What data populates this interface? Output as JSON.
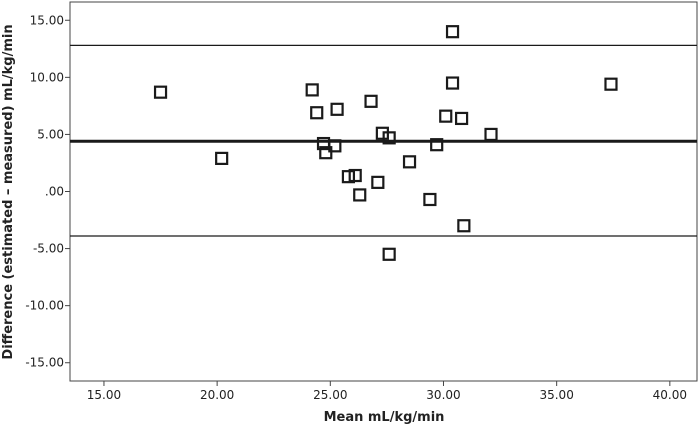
{
  "chart_data": {
    "type": "scatter",
    "xlabel": "Mean mL/kg/min",
    "ylabel": "Difference (estimated – measured) mL/kg/min",
    "xlim": [
      13.5,
      41.2
    ],
    "ylim": [
      -16.6,
      16.6
    ],
    "x_ticks": [
      15,
      20,
      25,
      30,
      35,
      40
    ],
    "x_tick_labels": [
      "15.00",
      "20.00",
      "25.00",
      "30.00",
      "35.00",
      "40.00"
    ],
    "y_ticks": [
      15,
      10,
      5,
      0,
      -5,
      -10,
      -15
    ],
    "y_tick_labels": [
      "15.00",
      "10.00",
      "5.00",
      ".00",
      "-5.00",
      "-10.00",
      "-15.00"
    ],
    "reference_lines": [
      {
        "y": 12.8,
        "style": "thin"
      },
      {
        "y": 4.4,
        "style": "thick"
      },
      {
        "y": -3.9,
        "style": "thin"
      }
    ],
    "marker": "open-square",
    "grid": false,
    "points": [
      {
        "x": 17.5,
        "y": 8.7
      },
      {
        "x": 20.2,
        "y": 2.9
      },
      {
        "x": 24.2,
        "y": 8.9
      },
      {
        "x": 24.4,
        "y": 6.9
      },
      {
        "x": 24.7,
        "y": 4.2
      },
      {
        "x": 24.8,
        "y": 3.4
      },
      {
        "x": 25.2,
        "y": 4.0
      },
      {
        "x": 25.3,
        "y": 7.2
      },
      {
        "x": 25.8,
        "y": 1.3
      },
      {
        "x": 26.1,
        "y": 1.4
      },
      {
        "x": 26.3,
        "y": -0.3
      },
      {
        "x": 26.8,
        "y": 7.9
      },
      {
        "x": 27.1,
        "y": 0.8
      },
      {
        "x": 27.3,
        "y": 5.1
      },
      {
        "x": 27.6,
        "y": 4.7
      },
      {
        "x": 27.6,
        "y": -5.5
      },
      {
        "x": 28.5,
        "y": 2.6
      },
      {
        "x": 29.4,
        "y": -0.7
      },
      {
        "x": 29.7,
        "y": 4.1
      },
      {
        "x": 30.1,
        "y": 6.6
      },
      {
        "x": 30.4,
        "y": 14.0
      },
      {
        "x": 30.4,
        "y": 9.5
      },
      {
        "x": 30.8,
        "y": 6.4
      },
      {
        "x": 30.9,
        "y": -3.0
      },
      {
        "x": 32.1,
        "y": 5.0
      },
      {
        "x": 37.4,
        "y": 9.4
      }
    ]
  }
}
